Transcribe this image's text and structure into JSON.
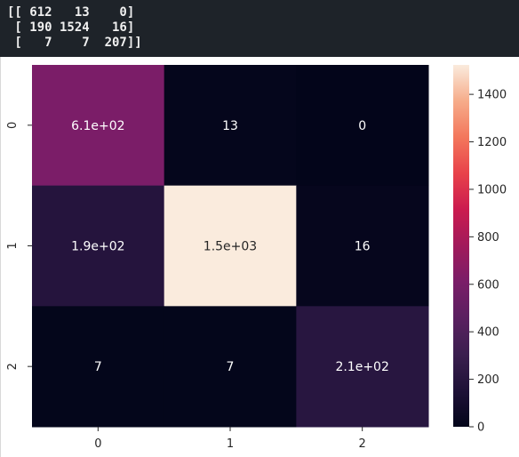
{
  "console": {
    "lines": [
      "[[ 612   13    0]",
      " [ 190 1524   16]",
      " [   7    7  207]]"
    ]
  },
  "chart_data": {
    "type": "heatmap",
    "title": "",
    "xlabel": "",
    "ylabel": "",
    "x_categories": [
      "0",
      "1",
      "2"
    ],
    "y_categories": [
      "0",
      "1",
      "2"
    ],
    "values": [
      [
        612,
        13,
        0
      ],
      [
        190,
        1524,
        16
      ],
      [
        7,
        7,
        207
      ]
    ],
    "annotations": [
      [
        "6.1e+02",
        "13",
        "0"
      ],
      [
        "1.9e+02",
        "1.5e+03",
        "16"
      ],
      [
        "7",
        "7",
        "2.1e+02"
      ]
    ],
    "vmin": 0,
    "vmax": 1524,
    "colorbar_ticks": [
      "0",
      "200",
      "400",
      "600",
      "800",
      "1000",
      "1200",
      "1400"
    ],
    "colormap": "rocket",
    "grid": false,
    "colors": {
      "text_light": "#ffffff",
      "text_dark": "#262626",
      "axis_text": "#262626"
    }
  }
}
